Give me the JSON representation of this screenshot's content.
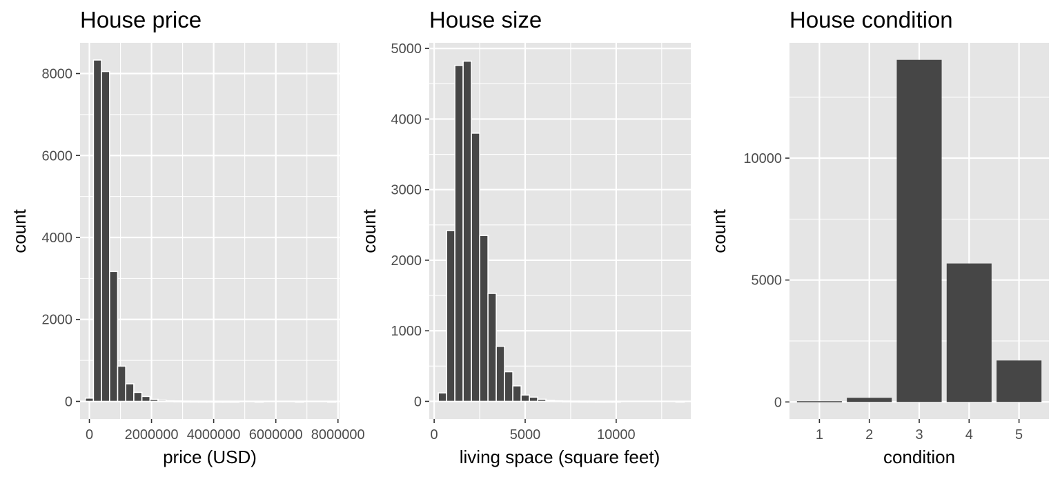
{
  "chart_data": [
    {
      "type": "bar",
      "title": "House price",
      "xlabel": "price (USD)",
      "ylabel": "count",
      "x_ticks": [
        "0",
        "2000000",
        "4000000",
        "6000000",
        "8000000"
      ],
      "y_ticks": [
        "0",
        "2000",
        "4000",
        "6000",
        "8000"
      ],
      "xlim": [
        -300000,
        8050000
      ],
      "ylim": [
        -430,
        8750
      ],
      "bin_width": 260000,
      "bins": [
        {
          "x": 0,
          "count": 80
        },
        {
          "x": 260000,
          "count": 8330
        },
        {
          "x": 520000,
          "count": 8050
        },
        {
          "x": 780000,
          "count": 3170
        },
        {
          "x": 1040000,
          "count": 860
        },
        {
          "x": 1300000,
          "count": 430
        },
        {
          "x": 1560000,
          "count": 220
        },
        {
          "x": 1820000,
          "count": 120
        },
        {
          "x": 2080000,
          "count": 50
        },
        {
          "x": 2340000,
          "count": 30
        },
        {
          "x": 2600000,
          "count": 15
        },
        {
          "x": 2860000,
          "count": 10
        },
        {
          "x": 3120000,
          "count": 6
        },
        {
          "x": 3380000,
          "count": 5
        },
        {
          "x": 3640000,
          "count": 4
        },
        {
          "x": 3900000,
          "count": 3
        },
        {
          "x": 4160000,
          "count": 2
        },
        {
          "x": 4420000,
          "count": 2
        },
        {
          "x": 4680000,
          "count": 1
        },
        {
          "x": 5460000,
          "count": 1
        },
        {
          "x": 6760000,
          "count": 1
        },
        {
          "x": 7800000,
          "count": 1
        }
      ],
      "grid": true
    },
    {
      "type": "bar",
      "title": "House size",
      "xlabel": "living space (square feet)",
      "ylabel": "count",
      "x_ticks": [
        "0",
        "5000",
        "10000"
      ],
      "y_ticks": [
        "0",
        "1000",
        "2000",
        "3000",
        "4000",
        "5000"
      ],
      "xlim": [
        -270,
        14100
      ],
      "ylim": [
        -250,
        5080
      ],
      "bin_width": 455,
      "bins": [
        {
          "x": 455,
          "count": 120
        },
        {
          "x": 910,
          "count": 2420
        },
        {
          "x": 1365,
          "count": 4760
        },
        {
          "x": 1820,
          "count": 4820
        },
        {
          "x": 2275,
          "count": 3800
        },
        {
          "x": 2730,
          "count": 2350
        },
        {
          "x": 3185,
          "count": 1530
        },
        {
          "x": 3640,
          "count": 780
        },
        {
          "x": 4095,
          "count": 420
        },
        {
          "x": 4550,
          "count": 220
        },
        {
          "x": 5005,
          "count": 90
        },
        {
          "x": 5460,
          "count": 60
        },
        {
          "x": 5915,
          "count": 30
        },
        {
          "x": 6370,
          "count": 15
        },
        {
          "x": 6825,
          "count": 8
        },
        {
          "x": 7280,
          "count": 5
        },
        {
          "x": 7735,
          "count": 3
        },
        {
          "x": 8190,
          "count": 2
        },
        {
          "x": 8645,
          "count": 2
        },
        {
          "x": 9100,
          "count": 1
        },
        {
          "x": 9555,
          "count": 1
        },
        {
          "x": 10010,
          "count": 1
        },
        {
          "x": 13510,
          "count": 1
        }
      ],
      "grid": true
    },
    {
      "type": "bar",
      "title": "House condition",
      "xlabel": "condition",
      "ylabel": "count",
      "categories": [
        "1",
        "2",
        "3",
        "4",
        "5"
      ],
      "values": [
        30,
        170,
        14030,
        5680,
        1700
      ],
      "y_ticks": [
        "0",
        "5000",
        "10000"
      ],
      "ylim": [
        -700,
        14730
      ],
      "grid": true
    }
  ]
}
